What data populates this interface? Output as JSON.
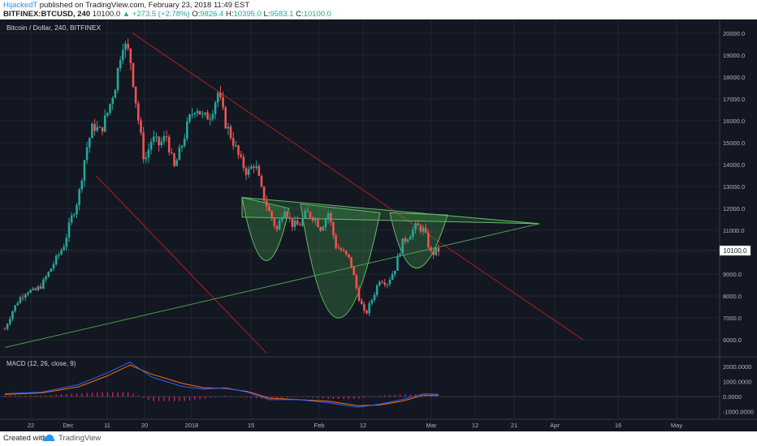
{
  "header": {
    "author": "HijackedT",
    "published": "published on TradingView.com, February 23, 2018 11:49 EST",
    "symbol": "BITFINEX:BTCUSD, 240",
    "last": "10100.0",
    "change": "▲ +273.5 (+2.78%)",
    "o_label": "O:",
    "o_val": "9826.4",
    "h_label": "H:",
    "h_val": "10395.0",
    "l_label": "L:",
    "l_val": "9583.1",
    "c_label": "C:",
    "c_val": "10100.0"
  },
  "chart_title": "Bitcoin / Dollar, 240, BITFINEX",
  "macd_label": "MACD (12, 26, close, 9)",
  "price_badge": "10100.0",
  "footer": {
    "created": "Created with",
    "brand": "TradingView"
  },
  "colors": {
    "up": "#26a69a",
    "down": "#ef5350",
    "bg": "#131722",
    "grid": "#1f2433",
    "pattern_fill": "#4caf50",
    "trend_red": "#b71c1c",
    "trend_green": "#43a047",
    "macd": "#2962ff",
    "signal": "#ff6d00",
    "hist": "#e91e63"
  },
  "chart_data": {
    "type": "candlestick",
    "title": "Bitcoin / Dollar, 240, BITFINEX",
    "x_ticks": [
      "22",
      "Dec",
      "11",
      "20",
      "2018",
      "15",
      "Feb",
      "12",
      "Mar",
      "12",
      "21",
      "Apr",
      "16",
      "May"
    ],
    "y_ticks": [
      "20000.0",
      "19000.0",
      "18000.0",
      "17000.0",
      "16000.0",
      "15000.0",
      "14000.0",
      "13000.0",
      "12000.0",
      "11000.0",
      "10000.0",
      "9000.0",
      "8000.0",
      "7000.0",
      "6000.0"
    ],
    "y_range": [
      5300,
      20400
    ],
    "macd_ticks": [
      "2000.0000",
      "1000.0000",
      "0.0000",
      "-1000.0000"
    ],
    "macd_range": [
      -1450,
      2550
    ],
    "last_price": 10100,
    "x_range": [
      0,
      60
    ],
    "price_path": [
      [
        0,
        6500
      ],
      [
        1,
        7300
      ],
      [
        2,
        7900
      ],
      [
        3,
        8250
      ],
      [
        4,
        8200
      ],
      [
        5,
        8500
      ],
      [
        6,
        9100
      ],
      [
        7,
        9700
      ],
      [
        8,
        10300
      ],
      [
        9,
        11500
      ],
      [
        10,
        12500
      ],
      [
        11,
        14600
      ],
      [
        12,
        15800
      ],
      [
        13,
        15500
      ],
      [
        14,
        16400
      ],
      [
        15,
        17600
      ],
      [
        16,
        19600
      ],
      [
        17,
        19000
      ],
      [
        18,
        16400
      ],
      [
        19,
        14100
      ],
      [
        20,
        15200
      ],
      [
        21,
        14900
      ],
      [
        22,
        15300
      ],
      [
        23,
        13800
      ],
      [
        24,
        14800
      ],
      [
        25,
        16000
      ],
      [
        26,
        16700
      ],
      [
        27,
        16100
      ],
      [
        28,
        16300
      ],
      [
        29,
        17300
      ],
      [
        30,
        15900
      ],
      [
        31,
        15100
      ],
      [
        32,
        14200
      ],
      [
        33,
        13600
      ],
      [
        34,
        14100
      ],
      [
        35,
        12700
      ],
      [
        36,
        11800
      ],
      [
        37,
        11000
      ],
      [
        38,
        12100
      ],
      [
        39,
        11300
      ],
      [
        40,
        11200
      ],
      [
        41,
        11800
      ],
      [
        42,
        11600
      ],
      [
        43,
        11100
      ],
      [
        44,
        11800
      ],
      [
        45,
        10300
      ],
      [
        46,
        10000
      ],
      [
        47,
        9600
      ],
      [
        48,
        8100
      ],
      [
        49,
        7100
      ],
      [
        50,
        7900
      ],
      [
        51,
        8800
      ],
      [
        52,
        8600
      ],
      [
        53,
        9200
      ],
      [
        54,
        10400
      ],
      [
        55,
        10800
      ],
      [
        56,
        11200
      ],
      [
        57,
        11000
      ],
      [
        58,
        9900
      ],
      [
        59,
        10100
      ]
    ],
    "macd_line": [
      [
        0,
        200
      ],
      [
        5,
        300
      ],
      [
        10,
        800
      ],
      [
        14,
        1600
      ],
      [
        17,
        2300
      ],
      [
        20,
        1300
      ],
      [
        24,
        700
      ],
      [
        27,
        500
      ],
      [
        30,
        600
      ],
      [
        33,
        300
      ],
      [
        36,
        -200
      ],
      [
        40,
        -200
      ],
      [
        44,
        -400
      ],
      [
        48,
        -700
      ],
      [
        51,
        -500
      ],
      [
        54,
        -200
      ],
      [
        57,
        200
      ],
      [
        59,
        150
      ]
    ],
    "signal_line": [
      [
        0,
        150
      ],
      [
        5,
        250
      ],
      [
        10,
        650
      ],
      [
        14,
        1400
      ],
      [
        17,
        2100
      ],
      [
        20,
        1500
      ],
      [
        24,
        900
      ],
      [
        27,
        600
      ],
      [
        30,
        550
      ],
      [
        33,
        350
      ],
      [
        36,
        -100
      ],
      [
        40,
        -200
      ],
      [
        44,
        -300
      ],
      [
        48,
        -600
      ],
      [
        51,
        -550
      ],
      [
        54,
        -300
      ],
      [
        57,
        100
      ],
      [
        59,
        100
      ]
    ]
  }
}
